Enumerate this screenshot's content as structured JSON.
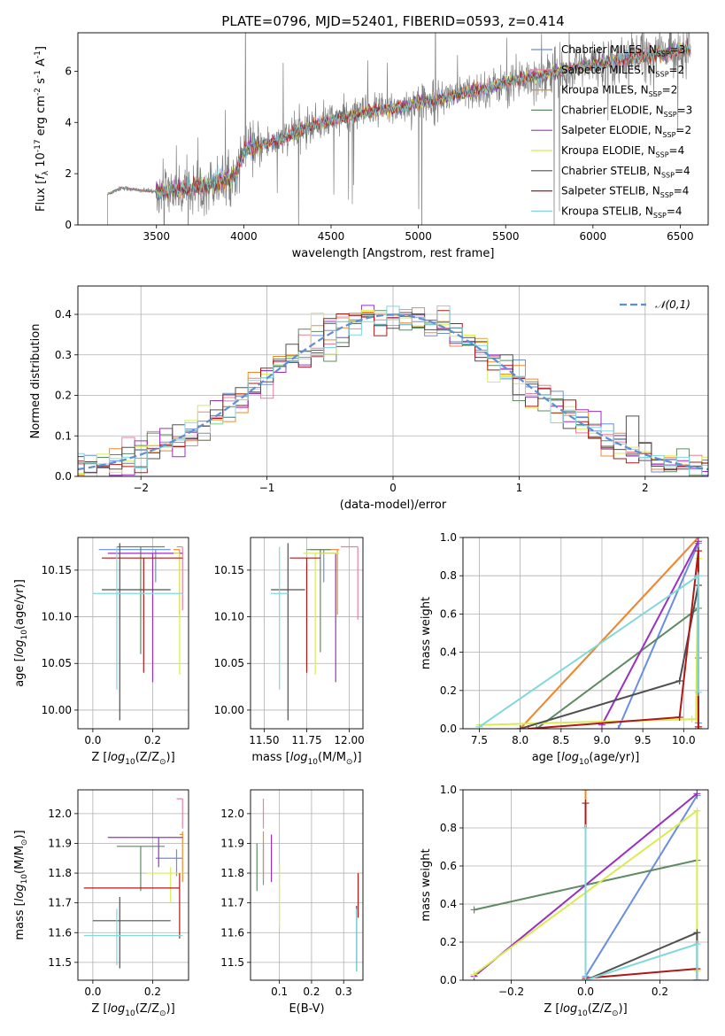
{
  "figure": {
    "title": "PLATE=0796, MJD=52401, FIBERID=0593, z=0.414"
  },
  "models": [
    {
      "label": "Chabrier MILES, N$_{SSP}$=3",
      "color": "#6a8ee0"
    },
    {
      "label": "Salpeter MILES, N$_{SSP}$=2",
      "color": "#ea7f9f"
    },
    {
      "label": "Kroupa MILES, N$_{SSP}$=2",
      "color": "#ee8a2e"
    },
    {
      "label": "Chabrier ELODIE, N$_{SSP}$=3",
      "color": "#5e8b62"
    },
    {
      "label": "Salpeter ELODIE, N$_{SSP}$=2",
      "color": "#9a30c0"
    },
    {
      "label": "Kroupa ELODIE, N$_{SSP}$=4",
      "color": "#d8ec52"
    },
    {
      "label": "Chabrier STELIB, N$_{SSP}$=4",
      "color": "#505050"
    },
    {
      "label": "Salpeter STELIB, N$_{SSP}$=4",
      "color": "#b01818"
    },
    {
      "label": "Kroupa STELIB, N$_{SSP}$=4",
      "color": "#80d8dc"
    }
  ],
  "chart_data": [
    {
      "id": "spectrum",
      "type": "line",
      "xlabel": "wavelength [Angstrom, rest frame]",
      "ylabel": "Flux [$f_\\lambda 10^{-17}$ erg cm$^{-2}$ s$^{-1}$ A$^{-1}$]",
      "xlim": [
        3050,
        6660
      ],
      "ylim": [
        0,
        7.5
      ],
      "xticks": [
        3500,
        4000,
        4500,
        5000,
        5500,
        6000,
        6500
      ],
      "yticks": [
        0,
        2,
        4,
        6
      ],
      "data_color": "#808080",
      "continuum": {
        "x": [
          3220,
          3300,
          3400,
          3500,
          3600,
          3700,
          3800,
          3900,
          3950,
          4000,
          4100,
          4200,
          4300,
          4400,
          4500,
          4600,
          4700,
          4800,
          4900,
          5000,
          5100,
          5200,
          5300,
          5400,
          5500,
          5600,
          5700,
          5800,
          5900,
          6000,
          6100,
          6200,
          6300,
          6400,
          6500
        ],
        "y": [
          1.2,
          1.45,
          1.35,
          1.3,
          1.35,
          1.45,
          1.6,
          1.75,
          1.9,
          2.9,
          3.1,
          3.3,
          3.6,
          3.9,
          4.1,
          4.25,
          4.4,
          4.5,
          4.6,
          4.75,
          4.9,
          5.05,
          5.2,
          5.35,
          5.55,
          5.7,
          5.85,
          6.0,
          6.1,
          6.25,
          6.4,
          6.5,
          6.6,
          6.7,
          6.85
        ]
      }
    },
    {
      "id": "residuals",
      "type": "line",
      "xlabel": "(data-model)/error",
      "ylabel": "Normed distribution",
      "xlim": [
        -2.5,
        2.5
      ],
      "ylim": [
        0,
        0.47
      ],
      "xticks": [
        -2,
        -1,
        0,
        1,
        2
      ],
      "yticks": [
        0.0,
        0.1,
        0.2,
        0.3,
        0.4
      ],
      "legend": "$\\mathcal{N}(0,1)$",
      "legend_position": "top-right",
      "grid": true
    },
    {
      "id": "age-vs-Z",
      "type": "scatter",
      "xlabel": "Z [$\\log_{10}(Z/Z_\\odot)$]",
      "ylabel": "age  [$\\log_{10}(age/yr)$]",
      "xlim": [
        -0.05,
        0.32
      ],
      "ylim": [
        9.98,
        10.185
      ],
      "xticks": [
        0.0,
        0.2
      ],
      "yticks": [
        10.0,
        10.05,
        10.1,
        10.15
      ],
      "points": [
        {
          "x": 0.21,
          "xerr": [
            0.19,
            0.05
          ],
          "y": 10.172,
          "yerr": [
            0.035,
            0.0
          ]
        },
        {
          "x": 0.3,
          "xerr": [
            0.02,
            0.0
          ],
          "y": 10.175,
          "yerr": [
            0.068,
            0.0
          ]
        },
        {
          "x": 0.29,
          "xerr": [
            0.02,
            0.0
          ],
          "y": 10.172,
          "yerr": [
            0.07,
            0.0
          ]
        },
        {
          "x": 0.16,
          "xerr": [
            0.08,
            0.08
          ],
          "y": 10.175,
          "yerr": [
            0.115,
            0.0
          ]
        },
        {
          "x": 0.2,
          "xerr": [
            0.15,
            0.1
          ],
          "y": 10.168,
          "yerr": [
            0.138,
            0.0
          ]
        },
        {
          "x": 0.29,
          "xerr": [
            0.02,
            0.0
          ],
          "y": 10.168,
          "yerr": [
            0.13,
            0.0
          ]
        },
        {
          "x": 0.09,
          "xerr": [
            0.06,
            0.17
          ],
          "y": 10.129,
          "yerr": [
            0.14,
            0.05
          ]
        },
        {
          "x": 0.17,
          "xerr": [
            0.14,
            0.13
          ],
          "y": 10.163,
          "yerr": [
            0.123,
            0.0
          ]
        },
        {
          "x": 0.08,
          "xerr": [
            0.08,
            0.22
          ],
          "y": 10.125,
          "yerr": [
            0.103,
            0.05
          ]
        }
      ]
    },
    {
      "id": "age-vs-mass",
      "type": "scatter",
      "xlabel": "mass [$\\log_{10}(M/M_\\odot)$]",
      "ylabel": "",
      "xlim": [
        11.42,
        12.08
      ],
      "ylim": [
        9.98,
        10.185
      ],
      "xticks": [
        11.5,
        11.75,
        12.0
      ],
      "yticks": [
        10.0,
        10.05,
        10.1,
        10.15
      ],
      "points": [
        {
          "x": 11.85,
          "xerr": [
            0.08,
            0.05
          ],
          "y": 10.172,
          "yerr": [
            0.035,
            0.0
          ]
        },
        {
          "x": 12.05,
          "xerr": [
            0.1,
            0.0
          ],
          "y": 10.175,
          "yerr": [
            0.078,
            0.0
          ]
        },
        {
          "x": 11.93,
          "xerr": [
            0.15,
            0.01
          ],
          "y": 10.172,
          "yerr": [
            0.07,
            0.0
          ]
        },
        {
          "x": 11.83,
          "xerr": [
            0.08,
            0.06
          ],
          "y": 10.172,
          "yerr": [
            0.11,
            0.0
          ]
        },
        {
          "x": 11.92,
          "xerr": [
            0.1,
            0.0
          ],
          "y": 10.168,
          "yerr": [
            0.138,
            0.0
          ]
        },
        {
          "x": 11.8,
          "xerr": [
            0.07,
            0.14
          ],
          "y": 10.168,
          "yerr": [
            0.13,
            0.0
          ]
        },
        {
          "x": 11.64,
          "xerr": [
            0.1,
            0.1
          ],
          "y": 10.129,
          "yerr": [
            0.14,
            0.05
          ]
        },
        {
          "x": 11.75,
          "xerr": [
            0.1,
            0.08
          ],
          "y": 10.163,
          "yerr": [
            0.123,
            0.0
          ]
        },
        {
          "x": 11.59,
          "xerr": [
            0.05,
            0.05
          ],
          "y": 10.125,
          "yerr": [
            0.103,
            0.05
          ]
        }
      ]
    },
    {
      "id": "weight-vs-age",
      "type": "line",
      "xlabel": "age  [$\\log_{10}(age/yr)$]",
      "ylabel": "mass weight",
      "xlim": [
        7.3,
        10.3
      ],
      "ylim": [
        0.0,
        1.0
      ],
      "xticks": [
        7.5,
        8.0,
        8.5,
        9.0,
        9.5,
        10.0
      ],
      "yticks": [
        0.0,
        0.2,
        0.4,
        0.6,
        0.8,
        1.0
      ],
      "grid": true,
      "series": [
        {
          "x": [
            9.2,
            10.18,
            10.18
          ],
          "y": [
            0.0,
            0.97,
            0.03
          ]
        },
        {
          "x": [
            8.0,
            10.18
          ],
          "y": [
            0.0,
            1.0
          ]
        },
        {
          "x": [
            8.0,
            10.18
          ],
          "y": [
            0.0,
            1.0
          ]
        },
        {
          "x": [
            8.2,
            10.18,
            10.18
          ],
          "y": [
            0.0,
            0.63,
            0.37
          ]
        },
        {
          "x": [
            9.0,
            10.18
          ],
          "y": [
            0.02,
            0.98
          ]
        },
        {
          "x": [
            7.5,
            10.1,
            10.15,
            10.18
          ],
          "y": [
            0.02,
            0.05,
            0.05,
            0.89
          ]
        },
        {
          "x": [
            8.0,
            9.95,
            10.18,
            10.18
          ],
          "y": [
            0.0,
            0.25,
            0.75,
            0.0
          ]
        },
        {
          "x": [
            8.1,
            9.95,
            10.18,
            10.18
          ],
          "y": [
            0.0,
            0.06,
            0.93,
            0.01
          ]
        },
        {
          "x": [
            7.5,
            10.18,
            10.18
          ],
          "y": [
            0.01,
            0.8,
            0.19
          ]
        }
      ]
    },
    {
      "id": "mass-vs-Z",
      "type": "scatter",
      "xlabel": "Z [$\\log_{10}(Z/Z_\\odot)$]",
      "ylabel": "mass [$\\log_{10}(M/M_\\odot)$]",
      "xlim": [
        -0.05,
        0.32
      ],
      "ylim": [
        11.44,
        12.08
      ],
      "xticks": [
        0.0,
        0.2
      ],
      "yticks": [
        11.5,
        11.6,
        11.7,
        11.8,
        11.9,
        12.0
      ],
      "points": [
        {
          "x": 0.28,
          "xerr": [
            0.07,
            0.02
          ],
          "y": 11.85,
          "yerr": [
            0.06,
            0.03
          ]
        },
        {
          "x": 0.3,
          "xerr": [
            0.02,
            0.0
          ],
          "y": 12.05,
          "yerr": [
            0.1,
            0.0
          ]
        },
        {
          "x": 0.3,
          "xerr": [
            0.01,
            0.0
          ],
          "y": 11.93,
          "yerr": [
            0.16,
            0.01
          ]
        },
        {
          "x": 0.16,
          "xerr": [
            0.08,
            0.08
          ],
          "y": 11.89,
          "yerr": [
            0.15,
            0.0
          ]
        },
        {
          "x": 0.22,
          "xerr": [
            0.17,
            0.08
          ],
          "y": 11.92,
          "yerr": [
            0.1,
            0.0
          ]
        },
        {
          "x": 0.26,
          "xerr": [
            0.08,
            0.04
          ],
          "y": 11.8,
          "yerr": [
            0.1,
            0.02
          ]
        },
        {
          "x": 0.09,
          "xerr": [
            0.09,
            0.17
          ],
          "y": 11.64,
          "yerr": [
            0.16,
            0.08
          ]
        },
        {
          "x": 0.29,
          "xerr": [
            0.32,
            0.0
          ],
          "y": 11.75,
          "yerr": [
            0.17,
            0.05
          ]
        },
        {
          "x": 0.08,
          "xerr": [
            0.11,
            0.22
          ],
          "y": 11.59,
          "yerr": [
            0.1,
            0.09
          ]
        }
      ]
    },
    {
      "id": "mass-vs-EBV",
      "type": "scatter",
      "xlabel": "E(B-V)",
      "ylabel": "",
      "xlim": [
        0.01,
        0.36
      ],
      "ylim": [
        11.44,
        12.08
      ],
      "xticks": [
        0.1,
        0.2,
        0.3
      ],
      "yticks": [
        11.5,
        11.6,
        11.7,
        11.8,
        11.9,
        12.0
      ],
      "points": [
        {
          "x": 0.05,
          "xerr": [
            0.0,
            0.0
          ],
          "y": 11.85,
          "yerr": [
            0.09,
            0.05
          ]
        },
        {
          "x": 0.05,
          "xerr": [
            0.0,
            0.0
          ],
          "y": 12.05,
          "yerr": [
            0.1,
            0.0
          ]
        },
        {
          "x": 0.05,
          "xerr": [
            0.0,
            0.0
          ],
          "y": 11.93,
          "yerr": [
            0.15,
            0.01
          ]
        },
        {
          "x": 0.03,
          "xerr": [
            0.0,
            0.0
          ],
          "y": 11.89,
          "yerr": [
            0.15,
            0.01
          ]
        },
        {
          "x": 0.075,
          "xerr": [
            0.0,
            0.0
          ],
          "y": 11.92,
          "yerr": [
            0.15,
            0.01
          ]
        },
        {
          "x": 0.1,
          "xerr": [
            0.0,
            0.0
          ],
          "y": 11.8,
          "yerr": [
            0.18,
            0.03
          ]
        },
        {
          "x": 0.34,
          "xerr": [
            0.0,
            0.0
          ],
          "y": 11.64,
          "yerr": [
            0.17,
            0.05
          ]
        },
        {
          "x": 0.345,
          "xerr": [
            0.0,
            0.0
          ],
          "y": 11.7,
          "yerr": [
            0.05,
            0.1
          ]
        },
        {
          "x": 0.34,
          "xerr": [
            0.0,
            0.0
          ],
          "y": 11.59,
          "yerr": [
            0.12,
            0.09
          ]
        }
      ]
    },
    {
      "id": "weight-vs-Z",
      "type": "line",
      "xlabel": "Z [$\\log_{10}(Z/Z_\\odot)$]",
      "ylabel": "mass weight",
      "xlim": [
        -0.33,
        0.33
      ],
      "ylim": [
        0.0,
        1.0
      ],
      "xticks": [
        -0.2,
        0.0,
        0.2
      ],
      "yticks": [
        0.0,
        0.2,
        0.4,
        0.6,
        0.8,
        1.0
      ],
      "grid": true,
      "series": [
        {
          "x": [
            0.0,
            0.3
          ],
          "y": [
            0.02,
            0.97
          ]
        },
        {
          "x": [
            0.0,
            0.0
          ],
          "y": [
            0.0,
            1.0
          ]
        },
        {
          "x": [
            0.0,
            0.0
          ],
          "y": [
            0.0,
            1.0
          ]
        },
        {
          "x": [
            -0.3,
            0.3
          ],
          "y": [
            0.37,
            0.63
          ]
        },
        {
          "x": [
            -0.3,
            0.3
          ],
          "y": [
            0.02,
            0.98
          ]
        },
        {
          "x": [
            -0.3,
            0.3,
            0.3
          ],
          "y": [
            0.03,
            0.89,
            0.05
          ]
        },
        {
          "x": [
            0.0,
            0.3,
            0.3
          ],
          "y": [
            0.0,
            0.25,
            0.0
          ]
        },
        {
          "x": [
            0.0,
            0.0,
            0.3,
            0.3
          ],
          "y": [
            0.93,
            0.01,
            0.06,
            0.0
          ]
        },
        {
          "x": [
            0.0,
            0.0,
            0.3,
            0.3
          ],
          "y": [
            0.8,
            0.0,
            0.19,
            0.0
          ]
        }
      ]
    }
  ]
}
